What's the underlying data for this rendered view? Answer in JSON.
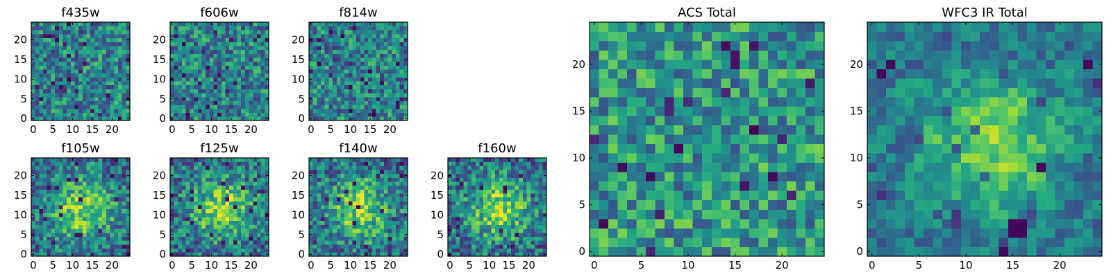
{
  "figure": {
    "description_type": "grid of 2D pixel-intensity maps (viridis colormap)"
  },
  "chart_data": [
    {
      "type": "heatmap",
      "id": "f435w",
      "title": "f435w",
      "grid": [
        25,
        25
      ],
      "xlim": [
        0,
        25
      ],
      "ylim": [
        0,
        25
      ],
      "xticks": [
        0,
        5,
        10,
        15,
        20
      ],
      "yticks": [
        0,
        5,
        10,
        15,
        20
      ],
      "colormap": "viridis",
      "pattern": "noise",
      "seed": 11
    },
    {
      "type": "heatmap",
      "id": "f606w",
      "title": "f606w",
      "grid": [
        25,
        25
      ],
      "xlim": [
        0,
        25
      ],
      "ylim": [
        0,
        25
      ],
      "xticks": [
        0,
        5,
        10,
        15,
        20
      ],
      "yticks": [
        0,
        5,
        10,
        15,
        20
      ],
      "colormap": "viridis",
      "pattern": "noise",
      "seed": 23
    },
    {
      "type": "heatmap",
      "id": "f814w",
      "title": "f814w",
      "grid": [
        25,
        25
      ],
      "xlim": [
        0,
        25
      ],
      "ylim": [
        0,
        25
      ],
      "xticks": [
        0,
        5,
        10,
        15,
        20
      ],
      "yticks": [
        0,
        5,
        10,
        15,
        20
      ],
      "colormap": "viridis",
      "pattern": "noise",
      "seed": 37
    },
    {
      "type": "heatmap",
      "id": "f105w",
      "title": "f105w",
      "grid": [
        25,
        25
      ],
      "xlim": [
        0,
        25
      ],
      "ylim": [
        0,
        25
      ],
      "xticks": [
        0,
        5,
        10,
        15,
        20
      ],
      "yticks": [
        0,
        5,
        10,
        15,
        20
      ],
      "colormap": "viridis",
      "pattern": "source",
      "seed": 41
    },
    {
      "type": "heatmap",
      "id": "f125w",
      "title": "f125w",
      "grid": [
        25,
        25
      ],
      "xlim": [
        0,
        25
      ],
      "ylim": [
        0,
        25
      ],
      "xticks": [
        0,
        5,
        10,
        15,
        20
      ],
      "yticks": [
        0,
        5,
        10,
        15,
        20
      ],
      "colormap": "viridis",
      "pattern": "source",
      "seed": 53
    },
    {
      "type": "heatmap",
      "id": "f140w",
      "title": "f140w",
      "grid": [
        25,
        25
      ],
      "xlim": [
        0,
        25
      ],
      "ylim": [
        0,
        25
      ],
      "xticks": [
        0,
        5,
        10,
        15,
        20
      ],
      "yticks": [
        0,
        5,
        10,
        15,
        20
      ],
      "colormap": "viridis",
      "pattern": "source",
      "seed": 67
    },
    {
      "type": "heatmap",
      "id": "f160w",
      "title": "f160w",
      "grid": [
        25,
        25
      ],
      "xlim": [
        0,
        25
      ],
      "ylim": [
        0,
        25
      ],
      "xticks": [
        0,
        5,
        10,
        15,
        20
      ],
      "yticks": [
        0,
        5,
        10,
        15,
        20
      ],
      "colormap": "viridis",
      "pattern": "source",
      "seed": 79
    },
    {
      "type": "heatmap",
      "id": "acs-total",
      "title": "ACS Total",
      "grid": [
        25,
        25
      ],
      "xlim": [
        0,
        25
      ],
      "ylim": [
        0,
        25
      ],
      "xticks": [
        0,
        5,
        10,
        15,
        20
      ],
      "yticks": [
        0,
        5,
        10,
        15,
        20
      ],
      "colormap": "viridis",
      "pattern": "noise-bright",
      "seed": 97
    },
    {
      "type": "heatmap",
      "id": "wfc3-ir-total",
      "title": "WFC3 IR Total",
      "grid": [
        25,
        25
      ],
      "xlim": [
        0,
        25
      ],
      "ylim": [
        0,
        25
      ],
      "xticks": [
        0,
        5,
        10,
        15,
        20
      ],
      "yticks": [
        0,
        5,
        10,
        15,
        20
      ],
      "colormap": "viridis",
      "pattern": "source-smooth",
      "seed": 113
    }
  ]
}
